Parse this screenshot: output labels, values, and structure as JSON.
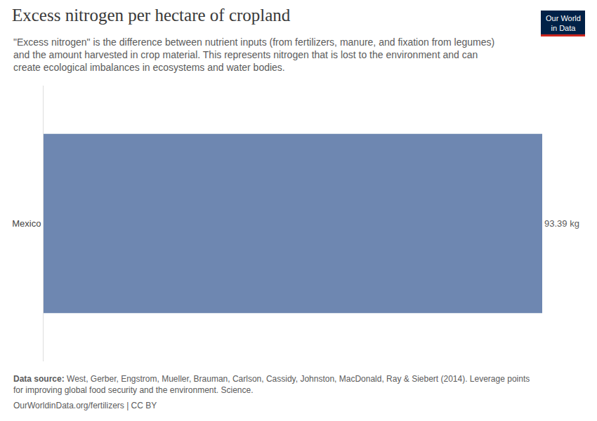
{
  "chart_data": {
    "type": "bar",
    "orientation": "horizontal",
    "title": "Excess nitrogen per hectare of cropland",
    "subtitle": [
      "\"Excess nitrogen\" is the difference between nutrient inputs (from fertilizers, manure, and fixation from legumes)",
      "and the amount harvested in crop material. This represents nitrogen that is lost to the environment and can",
      "create ecological imbalances in ecosystems and water bodies."
    ],
    "categories": [
      "Mexico"
    ],
    "values": [
      93.39
    ],
    "value_labels": [
      "93.39 kg"
    ],
    "data_labels": true,
    "color": "#6e87b1",
    "xlim": [
      0,
      93.39
    ],
    "tick_labels": "y",
    "grid": false,
    "source_label": "Data source:",
    "source": [
      "West, Gerber, Engstrom, Mueller, Brauman, Carlson, Cassidy, Johnston, MacDonald, Ray & Siebert (2014). Leverage points",
      "for improving global food security and the environment. Science."
    ],
    "footer": "OurWorldinData.org/fertilizers | CC BY",
    "logo": [
      "Our World",
      "in Data"
    ]
  }
}
